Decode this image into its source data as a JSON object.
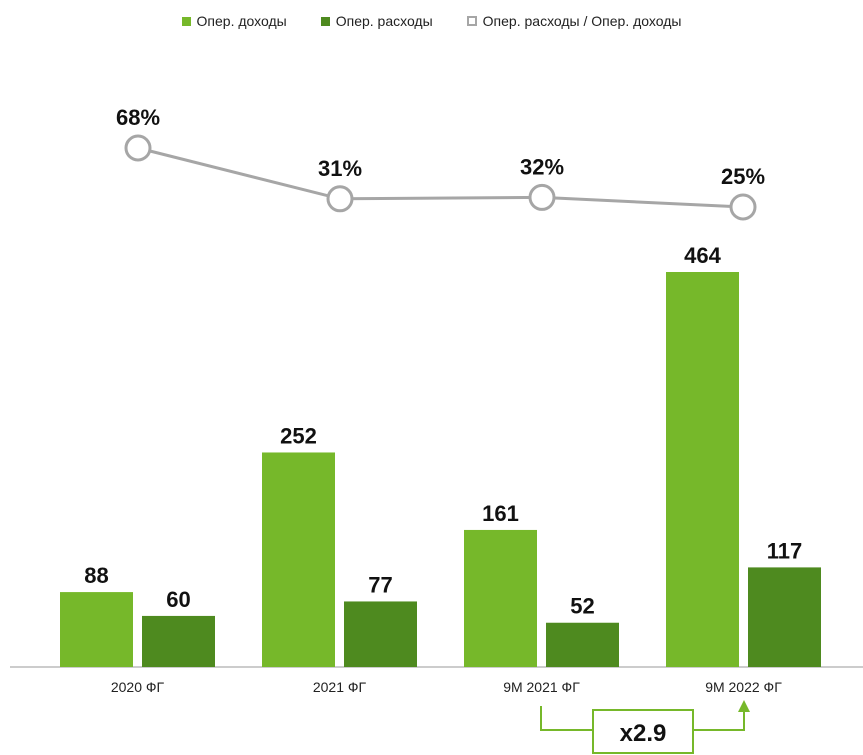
{
  "chart_data": {
    "type": "bar",
    "categories": [
      "2020 ФГ",
      "2021 ФГ",
      "9М 2021 ФГ",
      "9М 2022 ФГ"
    ],
    "series": [
      {
        "name": "Опер. доходы",
        "values": [
          88,
          252,
          161,
          464
        ],
        "color": "#76b82a"
      },
      {
        "name": "Опер. расходы",
        "values": [
          60,
          77,
          52,
          117
        ],
        "color": "#4e8a1f"
      }
    ],
    "line_series": {
      "name": "Опер. расходы / Опер. доходы",
      "values": [
        68,
        31,
        32,
        25
      ],
      "labels": [
        "68%",
        "31%",
        "32%",
        "25%"
      ],
      "color": "#a6a6a6"
    },
    "legend_position": "top-center",
    "annotation": {
      "text": "x2.9",
      "from_category": "9М 2021 ФГ",
      "to_category": "9М 2022 ФГ",
      "color": "#76b82a"
    }
  }
}
